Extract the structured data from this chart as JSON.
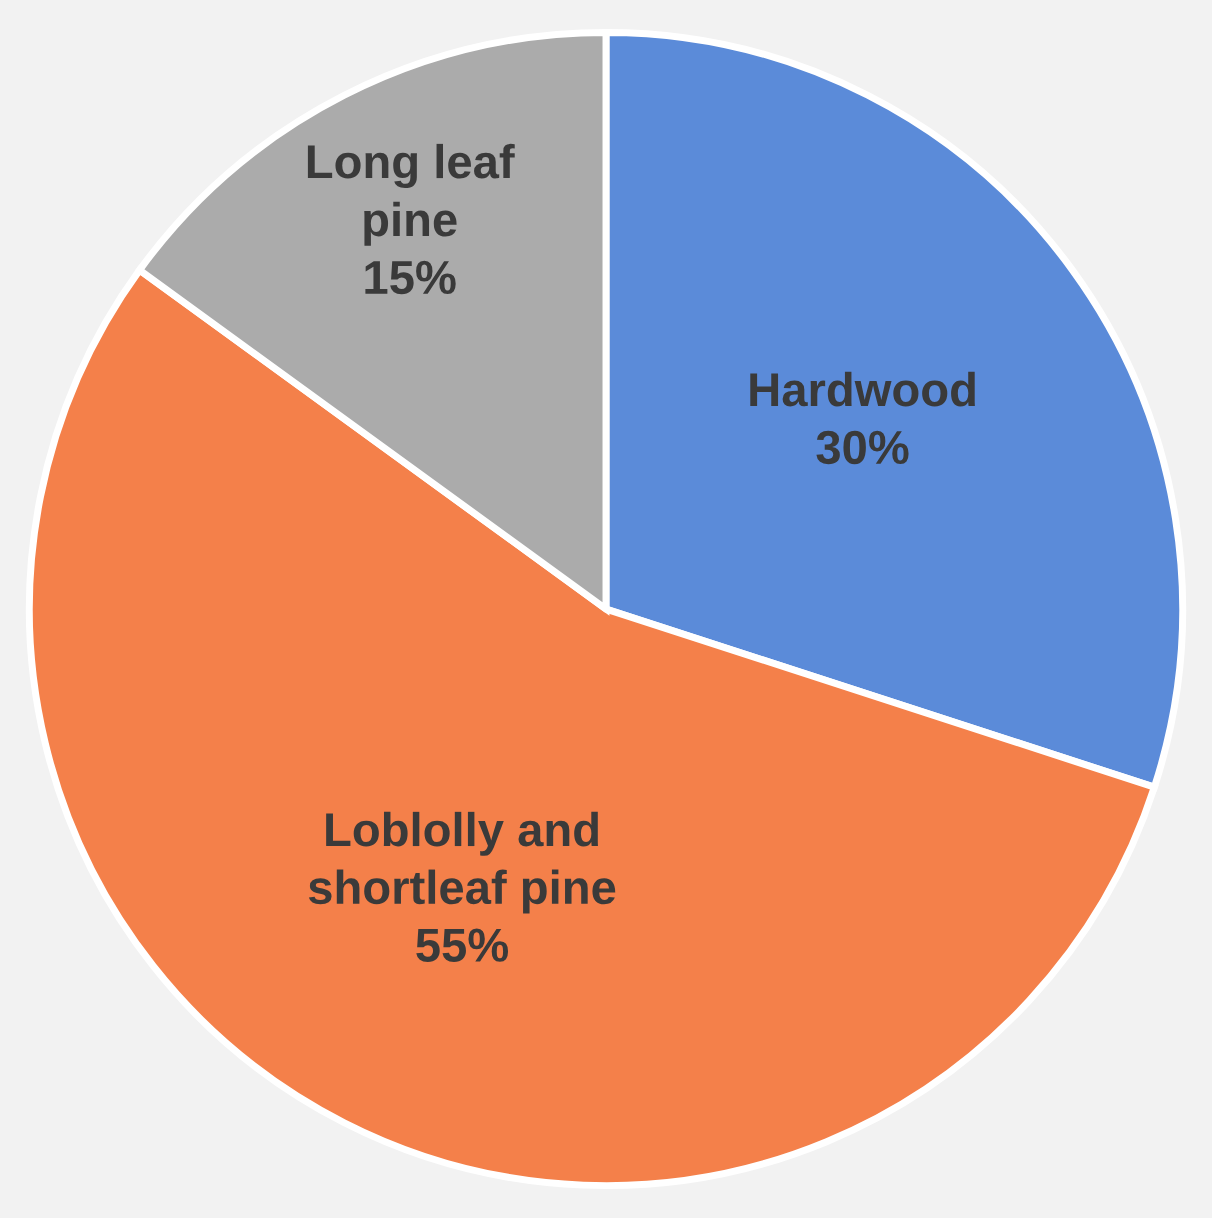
{
  "chart_data": {
    "type": "pie",
    "categories": [
      "Hardwood",
      "Loblolly and\nshortleaf pine",
      "Long leaf\npine"
    ],
    "values": [
      30,
      55,
      15
    ],
    "colors": [
      "#5b8bd9",
      "#f4804a",
      "#ababab"
    ],
    "value_labels": [
      "30%",
      "55%",
      "15%"
    ],
    "legend": false
  }
}
